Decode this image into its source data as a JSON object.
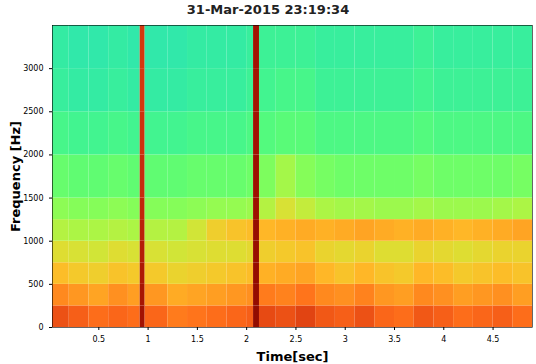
{
  "chart_data": {
    "type": "heatmap",
    "title": "31-Mar-2015 23:19:34",
    "x_label": "Time[sec]",
    "y_label": "Frequency [Hz]",
    "xlim": [
      0.03,
      4.9
    ],
    "xticks": [
      0.5,
      1,
      1.5,
      2,
      2.5,
      3,
      3.5,
      4,
      4.5
    ],
    "ylim": [
      0,
      3500
    ],
    "yticks": [
      0,
      500,
      1000,
      1500,
      2000,
      2500,
      3000
    ],
    "color": "turbo",
    "clim": [
      0,
      10
    ],
    "time_edges": [
      0.03,
      0.2,
      0.4,
      0.6,
      0.8,
      0.92,
      0.97,
      1.2,
      1.4,
      1.6,
      1.8,
      2.0,
      2.07,
      2.13,
      2.3,
      2.5,
      2.7,
      2.9,
      3.1,
      3.3,
      3.5,
      3.7,
      3.9,
      4.1,
      4.3,
      4.5,
      4.7,
      4.9
    ],
    "frequency_edges": [
      0,
      250,
      500,
      750,
      1000,
      1250,
      1500,
      2000,
      2500,
      3000,
      3500
    ],
    "cells": [
      [
        8.2,
        8.0,
        7.8,
        7.9,
        7.8,
        9.4,
        7.9,
        7.6,
        7.7,
        7.8,
        7.9,
        8.0,
        9.8,
        8.3,
        8.2,
        8.4,
        8.1,
        8.0,
        8.2,
        7.9,
        7.8,
        8.1,
        8.0,
        7.8,
        7.9,
        8.0,
        7.8
      ],
      [
        7.4,
        7.2,
        7.0,
        7.3,
        7.1,
        9.3,
        7.2,
        6.9,
        7.0,
        7.1,
        7.2,
        7.3,
        9.7,
        7.6,
        7.5,
        7.7,
        7.4,
        7.3,
        7.5,
        7.2,
        7.1,
        7.4,
        7.3,
        7.1,
        7.2,
        7.3,
        7.1
      ],
      [
        6.6,
        6.4,
        6.3,
        6.5,
        6.4,
        9.2,
        6.4,
        6.2,
        6.3,
        6.4,
        6.5,
        6.6,
        9.7,
        6.8,
        6.9,
        7.0,
        6.7,
        6.5,
        6.7,
        6.5,
        6.4,
        6.7,
        6.6,
        6.4,
        6.5,
        6.6,
        6.5
      ],
      [
        6.0,
        5.9,
        5.8,
        6.0,
        5.9,
        9.1,
        5.9,
        5.8,
        5.9,
        6.0,
        6.0,
        6.1,
        9.6,
        6.3,
        6.4,
        6.5,
        6.2,
        6.1,
        6.2,
        6.0,
        6.0,
        6.2,
        6.1,
        6.0,
        6.1,
        6.2,
        6.2
      ],
      [
        5.4,
        5.3,
        5.3,
        5.4,
        5.3,
        9.0,
        5.4,
        5.4,
        5.8,
        6.3,
        6.5,
        6.6,
        9.6,
        6.7,
        6.8,
        6.9,
        6.8,
        6.9,
        7.0,
        6.9,
        6.8,
        6.9,
        6.8,
        6.7,
        6.8,
        6.9,
        7.0
      ],
      [
        4.9,
        4.8,
        4.8,
        4.9,
        4.8,
        8.9,
        4.8,
        4.8,
        4.9,
        5.0,
        5.0,
        5.1,
        9.5,
        5.4,
        5.9,
        5.6,
        5.3,
        5.2,
        5.2,
        5.1,
        5.1,
        5.2,
        5.1,
        5.1,
        5.1,
        5.2,
        5.3
      ],
      [
        4.4,
        4.3,
        4.3,
        4.4,
        4.3,
        8.8,
        4.3,
        4.3,
        4.4,
        4.4,
        4.4,
        4.5,
        9.5,
        4.7,
        5.2,
        4.8,
        4.6,
        4.5,
        4.5,
        4.5,
        4.5,
        4.6,
        4.5,
        4.5,
        4.5,
        4.5,
        4.6
      ],
      [
        3.9,
        3.8,
        3.8,
        3.9,
        3.8,
        8.7,
        3.8,
        3.8,
        3.9,
        3.9,
        3.9,
        4.0,
        9.4,
        4.1,
        4.2,
        4.2,
        4.0,
        4.0,
        4.0,
        4.0,
        4.0,
        4.1,
        4.0,
        4.0,
        4.0,
        4.0,
        4.0
      ],
      [
        3.6,
        3.5,
        3.5,
        3.6,
        3.5,
        8.6,
        3.5,
        3.5,
        3.6,
        3.6,
        3.6,
        3.7,
        9.4,
        3.8,
        3.9,
        3.9,
        3.7,
        3.7,
        3.7,
        3.7,
        3.7,
        3.8,
        3.7,
        3.7,
        3.7,
        3.7,
        3.7
      ],
      [
        3.5,
        3.4,
        3.4,
        3.5,
        3.4,
        8.6,
        3.4,
        3.4,
        3.5,
        3.5,
        3.5,
        3.6,
        9.4,
        3.7,
        3.7,
        3.7,
        3.6,
        3.6,
        3.6,
        3.6,
        3.6,
        3.7,
        3.6,
        3.6,
        3.6,
        3.6,
        3.6
      ]
    ]
  }
}
